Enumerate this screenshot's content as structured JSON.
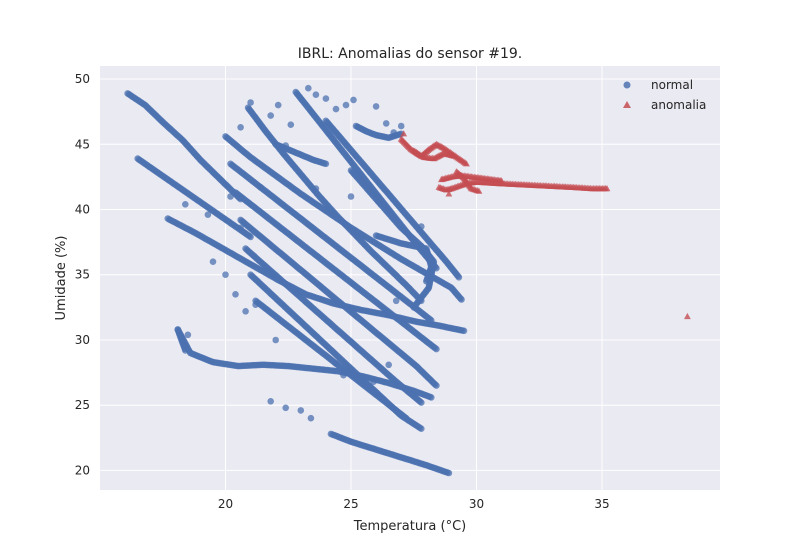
{
  "chart_data": {
    "type": "scatter",
    "title": "IBRL: Anomalias do sensor #19.",
    "xlabel": "Temperatura (°C)",
    "ylabel": "Umidade (%)",
    "xlim": [
      15,
      39.7
    ],
    "ylim": [
      18.5,
      51
    ],
    "xticks": [
      20,
      25,
      30,
      35
    ],
    "yticks": [
      20,
      25,
      30,
      35,
      40,
      45,
      50
    ],
    "grid": true,
    "legend_position": "top-right",
    "colors": {
      "normal": "#4c72b0",
      "anomalia": "#c44e52",
      "plot_background": "#eaeaf2",
      "grid": "#ffffff"
    },
    "series": [
      {
        "name": "normal",
        "marker": "circle",
        "color": "#4c72b0",
        "segments": [
          {
            "x": [
              16.1,
              16.8,
              17.5,
              18.3,
              19.0,
              19.8,
              20.6
            ],
            "y": [
              48.9,
              48.0,
              46.7,
              45.3,
              43.8,
              42.3,
              40.8
            ]
          },
          {
            "x": [
              16.5,
              17.4,
              18.3,
              19.2,
              20.1,
              21.0
            ],
            "y": [
              43.9,
              42.7,
              41.5,
              40.3,
              39.1,
              37.9
            ]
          },
          {
            "x": [
              17.7,
              18.8,
              19.9,
              21.0,
              22.1,
              23.2,
              24.3,
              25.4,
              26.5,
              27.6,
              28.5,
              29.5
            ],
            "y": [
              39.3,
              38.2,
              37.0,
              35.8,
              34.6,
              33.5,
              32.8,
              32.3,
              31.9,
              31.4,
              31.1,
              30.7
            ]
          },
          {
            "x": [
              18.1,
              18.6,
              19.5,
              20.5,
              21.5,
              22.5,
              23.5,
              24.5,
              25.5,
              26.5,
              27.5,
              28.2
            ],
            "y": [
              30.8,
              29.0,
              28.3,
              28.0,
              28.1,
              28.0,
              27.8,
              27.6,
              27.2,
              26.7,
              26.1,
              25.6
            ]
          },
          {
            "x": [
              18.1,
              18.4
            ],
            "y": [
              30.8,
              29.2
            ]
          },
          {
            "x": [
              24.2,
              25.0,
              26.0,
              27.0,
              28.0,
              28.9
            ],
            "y": [
              22.8,
              22.2,
              21.6,
              21.0,
              20.4,
              19.8
            ]
          },
          {
            "x": [
              20.0,
              21.0,
              22.0,
              23.0,
              24.0,
              25.0,
              26.0,
              27.0,
              28.0,
              29.0,
              29.4
            ],
            "y": [
              45.6,
              44.0,
              42.6,
              41.2,
              39.9,
              38.6,
              37.4,
              36.2,
              35.1,
              34.0,
              33.1
            ]
          },
          {
            "x": [
              20.2,
              21.2,
              22.2,
              23.2,
              24.2,
              25.2,
              26.2,
              27.2,
              28.2
            ],
            "y": [
              43.5,
              42.0,
              40.5,
              39.0,
              37.5,
              36.0,
              34.5,
              33.0,
              31.5
            ]
          },
          {
            "x": [
              20.4,
              21.4,
              22.4,
              23.4,
              24.4,
              25.4,
              26.4,
              27.4,
              28.4
            ],
            "y": [
              41.3,
              39.8,
              38.3,
              36.8,
              35.3,
              33.8,
              32.3,
              30.8,
              29.3
            ]
          },
          {
            "x": [
              20.6,
              21.6,
              22.6,
              23.6,
              24.6,
              25.6,
              26.6,
              27.6,
              28.4
            ],
            "y": [
              39.2,
              37.6,
              36.0,
              34.4,
              32.8,
              31.2,
              29.6,
              28.0,
              26.5
            ]
          },
          {
            "x": [
              20.8,
              21.8,
              22.8,
              23.8,
              24.8,
              25.8,
              26.8,
              27.8
            ],
            "y": [
              37.0,
              35.3,
              33.6,
              31.9,
              30.2,
              28.5,
              26.8,
              25.2
            ]
          },
          {
            "x": [
              21.0,
              22.0,
              23.0,
              24.0,
              25.0,
              26.0,
              27.0,
              27.8
            ],
            "y": [
              35.0,
              33.2,
              31.4,
              29.6,
              27.8,
              26.0,
              24.2,
              23.2
            ]
          },
          {
            "x": [
              21.2,
              22.2,
              23.2,
              24.2,
              25.2,
              26.2,
              27.2
            ],
            "y": [
              33.0,
              31.5,
              30.0,
              28.5,
              27.0,
              25.5,
              24.0
            ]
          },
          {
            "x": [
              20.9,
              21.6,
              22.3,
              23.0,
              23.7,
              24.4,
              25.1,
              25.8,
              26.5,
              27.2,
              27.8
            ],
            "y": [
              47.8,
              46.0,
              44.3,
              42.7,
              41.1,
              39.6,
              38.2,
              36.8,
              35.5,
              34.2,
              33.0
            ]
          },
          {
            "x": [
              22.8,
              23.5,
              24.2,
              24.9,
              25.6,
              26.3,
              27.0,
              27.7,
              28.4
            ],
            "y": [
              49.0,
              47.3,
              45.6,
              43.9,
              42.2,
              40.5,
              38.8,
              37.1,
              35.5
            ]
          },
          {
            "x": [
              24.0,
              24.8,
              25.6,
              26.4,
              27.2,
              28.0,
              28.8,
              29.3
            ],
            "y": [
              46.8,
              45.0,
              43.2,
              41.4,
              39.6,
              37.8,
              36.0,
              34.8
            ]
          },
          {
            "x": [
              25.0,
              26.0,
              27.0,
              27.8,
              28.3,
              28.1,
              27.5
            ],
            "y": [
              43.0,
              40.8,
              38.6,
              37.2,
              36.0,
              34.0,
              32.5
            ]
          },
          {
            "x": [
              26.0,
              27.0,
              28.0,
              28.2,
              28.0
            ],
            "y": [
              38.0,
              37.4,
              37.0,
              35.6,
              34.5
            ]
          },
          {
            "x": [
              25.2,
              25.6,
              26.0,
              26.5,
              27.0
            ],
            "y": [
              46.4,
              46.0,
              45.7,
              45.5,
              45.8
            ]
          },
          {
            "x": [
              22.0,
              22.5,
              23.0,
              23.5,
              24.0
            ],
            "y": [
              45.0,
              44.6,
              44.2,
              43.8,
              43.5
            ]
          }
        ],
        "scattered": [
          [
            20.2,
            41.0
          ],
          [
            20.6,
            38.6
          ],
          [
            20.0,
            35.0
          ],
          [
            20.4,
            33.5
          ],
          [
            20.8,
            32.2
          ],
          [
            20.6,
            46.3
          ],
          [
            21.0,
            48.2
          ],
          [
            21.8,
            47.2
          ],
          [
            22.1,
            48.0
          ],
          [
            22.6,
            46.5
          ],
          [
            23.3,
            49.3
          ],
          [
            23.6,
            48.8
          ],
          [
            24.0,
            48.5
          ],
          [
            24.4,
            47.7
          ],
          [
            24.8,
            48.0
          ],
          [
            25.1,
            48.4
          ],
          [
            26.0,
            47.9
          ],
          [
            26.4,
            46.6
          ],
          [
            27.0,
            46.4
          ],
          [
            26.7,
            45.9
          ],
          [
            18.4,
            40.4
          ],
          [
            19.3,
            39.6
          ],
          [
            19.5,
            36.0
          ],
          [
            22.4,
            44.9
          ],
          [
            21.4,
            41.7
          ],
          [
            23.6,
            41.6
          ],
          [
            25.0,
            41.0
          ],
          [
            26.8,
            33.0
          ],
          [
            26.5,
            28.1
          ],
          [
            18.5,
            30.4
          ],
          [
            21.2,
            32.7
          ],
          [
            22.0,
            30.0
          ],
          [
            24.7,
            27.3
          ],
          [
            25.9,
            26.8
          ],
          [
            21.8,
            25.3
          ],
          [
            22.4,
            24.8
          ],
          [
            23.0,
            24.6
          ],
          [
            23.4,
            24.0
          ],
          [
            24.4,
            28.2
          ],
          [
            27.8,
            38.7
          ]
        ]
      },
      {
        "name": "anomalia",
        "marker": "triangle",
        "color": "#c44e52",
        "segments": [
          {
            "x": [
              27.0,
              27.4,
              27.8,
              28.1,
              28.4,
              28.7,
              29.0,
              29.3,
              29.6
            ],
            "y": [
              45.4,
              44.6,
              44.1,
              44.6,
              45.0,
              44.7,
              44.3,
              43.9,
              43.5
            ]
          },
          {
            "x": [
              27.5,
              27.9,
              28.3,
              28.7,
              29.1
            ],
            "y": [
              44.5,
              44.0,
              43.9,
              44.3,
              44.1
            ]
          },
          {
            "x": [
              28.5,
              28.8,
              29.0,
              29.3,
              29.6,
              30.0,
              30.8,
              31.8,
              32.8,
              33.8,
              34.6,
              35.2
            ],
            "y": [
              41.7,
              41.5,
              41.6,
              41.8,
              42.0,
              42.1,
              42.0,
              41.9,
              41.8,
              41.7,
              41.6,
              41.6
            ]
          },
          {
            "x": [
              28.6,
              29.0,
              29.4,
              29.8,
              30.2,
              30.6,
              31.0
            ],
            "y": [
              42.3,
              42.5,
              42.6,
              42.5,
              42.4,
              42.3,
              42.2
            ]
          },
          {
            "x": [
              29.2,
              29.5,
              29.8,
              30.1
            ],
            "y": [
              42.9,
              42.4,
              41.6,
              41.4
            ]
          }
        ],
        "scattered": [
          [
            38.4,
            31.8
          ],
          [
            27.1,
            45.8
          ],
          [
            28.9,
            41.2
          ]
        ]
      }
    ]
  }
}
